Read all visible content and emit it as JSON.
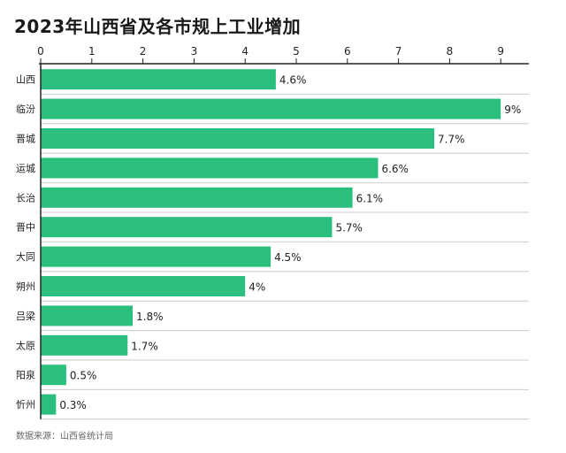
{
  "title": "2023年山西省及各市规上工业增加",
  "source": "数据来源：山西省统计局",
  "colors": {
    "bar": "#2bbf7e",
    "grid": "#cccccc",
    "axis": "#222222"
  },
  "chart_data": {
    "type": "bar",
    "orientation": "horizontal",
    "title": "2023年山西省及各市规上工业增加",
    "categories": [
      "山西",
      "临汾",
      "晋城",
      "运城",
      "长治",
      "晋中",
      "大同",
      "朔州",
      "吕梁",
      "太原",
      "阳泉",
      "忻州"
    ],
    "values": [
      4.6,
      9,
      7.7,
      6.6,
      6.1,
      5.7,
      4.5,
      4,
      1.8,
      1.7,
      0.5,
      0.3
    ],
    "data_labels": [
      "4.6%",
      "9%",
      "7.7%",
      "6.6%",
      "6.1%",
      "5.7%",
      "4.5%",
      "4%",
      "1.8%",
      "1.7%",
      "0.5%",
      "0.3%"
    ],
    "xlim": [
      0,
      9
    ],
    "xticks": [
      "0",
      "1",
      "2",
      "3",
      "4",
      "5",
      "6",
      "7",
      "8",
      "9"
    ],
    "x_axis_position": "top",
    "grid": true,
    "legend": "none"
  }
}
